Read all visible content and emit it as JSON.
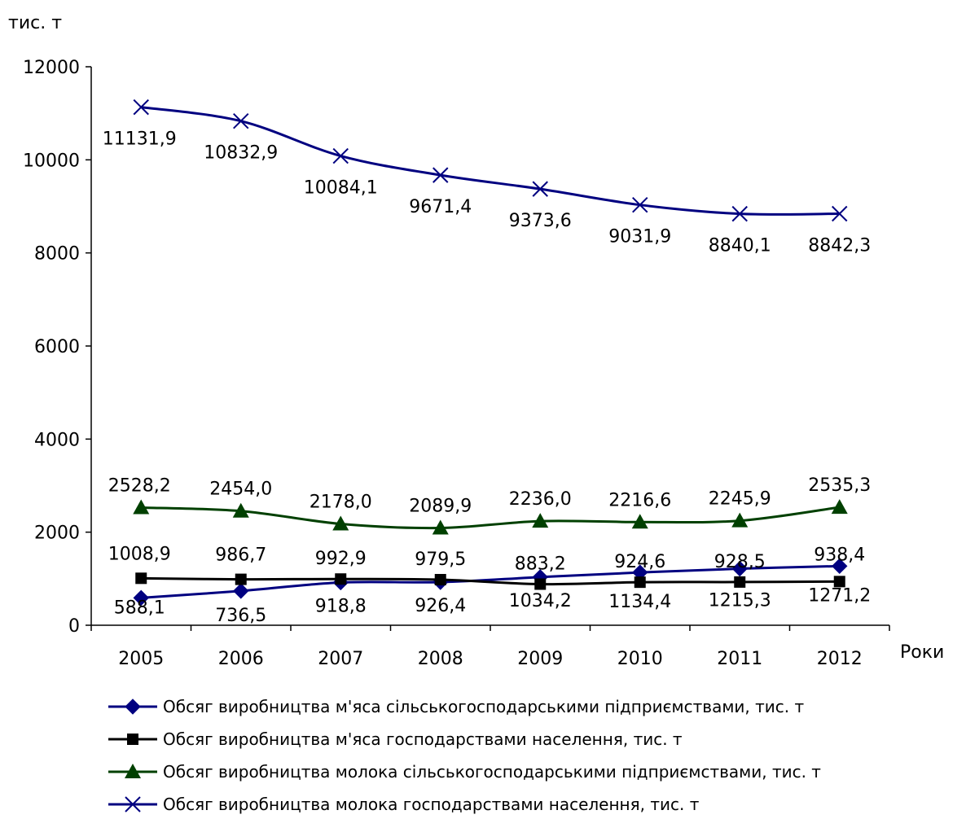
{
  "chart_data": {
    "type": "line",
    "ylabel": "тис. т",
    "xlabel": "Роки",
    "ylim": [
      0,
      12000
    ],
    "yticks": [
      "0",
      "2000",
      "4000",
      "6000",
      "8000",
      "10000",
      "12000"
    ],
    "categories": [
      "2005",
      "2006",
      "2007",
      "2008",
      "2009",
      "2010",
      "2011",
      "2012"
    ],
    "grid": false,
    "legend_position": "bottom",
    "series": [
      {
        "name": "Обсяг виробництва м'яса сільськогосподарськими підприємствами, тис. т",
        "values": [
          588.1,
          736.5,
          918.8,
          926.4,
          1034.2,
          1134.4,
          1215.3,
          1271.2
        ],
        "labels": [
          "588,1",
          "736,5",
          "918,8",
          "926,4",
          "1034,2",
          "1134,4",
          "1215,3",
          "1271,2"
        ],
        "color": "#000080",
        "marker": "diamond"
      },
      {
        "name": "Обсяг виробництва м'яса господарствами населення, тис. т",
        "values": [
          1008.9,
          986.7,
          992.9,
          979.5,
          883.2,
          924.6,
          928.5,
          938.4
        ],
        "labels": [
          "1008,9",
          "986,7",
          "992,9",
          "979,5",
          "883,2",
          "924,6",
          "928,5",
          "938,4"
        ],
        "color": "#000000",
        "marker": "square"
      },
      {
        "name": "Обсяг виробництва молока сільськогосподарськими підприємствами, тис. т",
        "values": [
          2528.2,
          2454.0,
          2178.0,
          2089.9,
          2236.0,
          2216.6,
          2245.9,
          2535.3
        ],
        "labels": [
          "2528,2",
          "2454,0",
          "2178,0",
          "2089,9",
          "2236,0",
          "2216,6",
          "2245,9",
          "2535,3"
        ],
        "color": "#004000",
        "marker": "triangle"
      },
      {
        "name": "Обсяг виробництва молока господарствами населення, тис. т",
        "values": [
          11131.9,
          10832.9,
          10084.1,
          9671.4,
          9373.6,
          9031.9,
          8840.1,
          8842.3
        ],
        "labels": [
          "11131,9",
          "10832,9",
          "10084,1",
          "9671,4",
          "9373,6",
          "9031,9",
          "8840,1",
          "8842,3"
        ],
        "color": "#000080",
        "marker": "x"
      }
    ]
  }
}
